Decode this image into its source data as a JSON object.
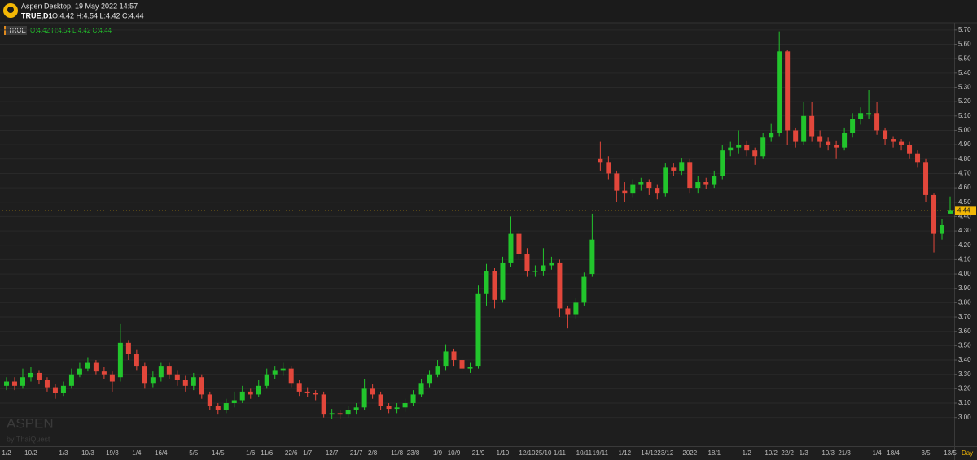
{
  "header": {
    "app": "Aspen Desktop, 19 May 2022 14:57",
    "symbol": "TRUE,D1",
    "ohlc": "O:4.42 H:4.54 L:4.42 C:4.44"
  },
  "watermark": {
    "brand": "ASPEN",
    "by": "by ThaiQuest"
  },
  "chart_data": {
    "type": "candlestick",
    "name": "TRUE",
    "timeframe": "Day",
    "up_color": "#22c52c",
    "down_color": "#e2473b",
    "grid": true,
    "ylim": [
      2.8,
      5.75
    ],
    "yticks": [
      {
        "value": 3,
        "label": "3.00"
      },
      {
        "value": 3.1,
        "label": "3.10"
      },
      {
        "value": 3.2,
        "label": "3.20"
      },
      {
        "value": 3.3,
        "label": "3.30"
      },
      {
        "value": 3.4,
        "label": "3.40"
      },
      {
        "value": 3.5,
        "label": "3.50"
      },
      {
        "value": 3.6,
        "label": "3.60"
      },
      {
        "value": 3.7,
        "label": "3.70"
      },
      {
        "value": 3.8,
        "label": "3.80"
      },
      {
        "value": 3.9,
        "label": "3.90"
      },
      {
        "value": 4,
        "label": "4.00"
      },
      {
        "value": 4.1,
        "label": "4.10"
      },
      {
        "value": 4.2,
        "label": "4.20"
      },
      {
        "value": 4.3,
        "label": "4.30"
      },
      {
        "value": 4.4,
        "label": "4.40"
      },
      {
        "value": 4.5,
        "label": "4.50"
      },
      {
        "value": 4.6,
        "label": "4.60"
      },
      {
        "value": 4.7,
        "label": "4.70"
      },
      {
        "value": 4.8,
        "label": "4.80"
      },
      {
        "value": 4.9,
        "label": "4.90"
      },
      {
        "value": 5,
        "label": "5.00"
      },
      {
        "value": 5.1,
        "label": "5.10"
      },
      {
        "value": 5.2,
        "label": "5.20"
      },
      {
        "value": 5.3,
        "label": "5.30"
      },
      {
        "value": 5.4,
        "label": "5.40"
      },
      {
        "value": 5.5,
        "label": "5.50"
      },
      {
        "value": 5.6,
        "label": "5.60"
      },
      {
        "value": 5.7,
        "label": "5.70"
      }
    ],
    "categories": [
      "1/2",
      null,
      null,
      "10/2",
      null,
      null,
      null,
      "1/3",
      null,
      null,
      "10/3",
      null,
      null,
      "19/3",
      null,
      null,
      "1/4",
      null,
      null,
      "16/4",
      null,
      null,
      null,
      "5/5",
      null,
      null,
      "14/5",
      null,
      null,
      null,
      "1/6",
      null,
      "11/6",
      null,
      null,
      "22/6",
      null,
      "1/7",
      null,
      null,
      "12/7",
      null,
      null,
      "21/7",
      null,
      "2/8",
      null,
      null,
      "11/8",
      null,
      "23/8",
      null,
      null,
      "1/9",
      null,
      "10/9",
      null,
      null,
      "21/9",
      null,
      null,
      "1/10",
      null,
      null,
      "12/10",
      null,
      "25/10",
      null,
      "1/11",
      null,
      null,
      "10/11",
      null,
      "19/11",
      null,
      null,
      "1/12",
      null,
      null,
      "14/12",
      null,
      "23/12",
      null,
      null,
      "2022",
      null,
      null,
      "18/1",
      null,
      null,
      null,
      "1/2",
      null,
      null,
      "10/2",
      null,
      "22/2",
      null,
      "1/3",
      null,
      null,
      "10/3",
      null,
      "21/3",
      null,
      null,
      null,
      "1/4",
      null,
      "18/4",
      null,
      null,
      null,
      "3/5",
      null,
      null,
      "13/5"
    ],
    "open": [
      3.22,
      3.25,
      3.22,
      3.28,
      3.31,
      3.26,
      3.21,
      3.17,
      3.22,
      3.3,
      3.34,
      3.38,
      3.32,
      3.3,
      3.28,
      3.52,
      3.44,
      3.36,
      3.24,
      3.28,
      3.36,
      3.3,
      3.26,
      3.22,
      3.28,
      3.16,
      3.08,
      3.05,
      3.1,
      3.12,
      3.18,
      3.16,
      3.22,
      3.3,
      3.33,
      3.34,
      3.24,
      3.18,
      3.17,
      3.16,
      3.02,
      3.03,
      3.02,
      3.05,
      3.07,
      3.2,
      3.16,
      3.08,
      3.06,
      3.07,
      3.1,
      3.16,
      3.24,
      3.3,
      3.36,
      3.46,
      3.4,
      3.34,
      3.36,
      3.86,
      4.02,
      3.82,
      4.08,
      4.28,
      4.14,
      4.02,
      4.02,
      4.06,
      4.08,
      3.76,
      3.72,
      3.8,
      4.0,
      4.8,
      4.78,
      4.7,
      4.58,
      4.56,
      4.62,
      4.64,
      4.6,
      4.56,
      4.74,
      4.72,
      4.78,
      4.6,
      4.64,
      4.62,
      4.68,
      4.86,
      4.88,
      4.9,
      4.86,
      4.82,
      4.95,
      4.98,
      5.55,
      5.0,
      4.92,
      5.1,
      4.96,
      4.92,
      4.9,
      4.88,
      4.98,
      5.08,
      5.12,
      5.12,
      5.0,
      4.94,
      4.92,
      4.9,
      4.84,
      4.78,
      4.55,
      4.28,
      4.42
    ],
    "high": [
      3.28,
      3.28,
      3.34,
      3.35,
      3.33,
      3.28,
      3.23,
      3.25,
      3.34,
      3.38,
      3.42,
      3.4,
      3.35,
      3.32,
      3.65,
      3.54,
      3.47,
      3.38,
      3.32,
      3.38,
      3.38,
      3.33,
      3.29,
      3.31,
      3.3,
      3.18,
      3.1,
      3.13,
      3.18,
      3.22,
      3.2,
      3.26,
      3.34,
      3.36,
      3.38,
      3.36,
      3.26,
      3.21,
      3.19,
      3.18,
      3.06,
      3.05,
      3.08,
      3.1,
      3.27,
      3.23,
      3.18,
      3.1,
      3.1,
      3.13,
      3.19,
      3.27,
      3.33,
      3.4,
      3.51,
      3.48,
      3.42,
      3.38,
      3.92,
      4.07,
      4.04,
      4.12,
      4.4,
      4.3,
      4.18,
      4.06,
      4.18,
      4.12,
      4.1,
      3.78,
      3.83,
      4.01,
      4.42,
      4.92,
      4.82,
      4.72,
      4.64,
      4.66,
      4.67,
      4.66,
      4.62,
      4.77,
      4.77,
      4.81,
      4.8,
      4.68,
      4.67,
      4.72,
      4.9,
      4.92,
      5.0,
      4.93,
      4.88,
      4.98,
      5.05,
      5.69,
      5.56,
      5.02,
      5.2,
      5.2,
      5.0,
      4.95,
      4.93,
      5.02,
      5.12,
      5.16,
      5.28,
      5.2,
      5.02,
      4.96,
      4.94,
      4.92,
      4.86,
      4.8,
      4.56,
      4.38,
      4.54
    ],
    "low": [
      3.19,
      3.19,
      3.2,
      3.25,
      3.23,
      3.18,
      3.13,
      3.15,
      3.2,
      3.28,
      3.32,
      3.3,
      3.27,
      3.18,
      3.25,
      3.4,
      3.33,
      3.2,
      3.21,
      3.25,
      3.27,
      3.22,
      3.18,
      3.19,
      3.13,
      3.05,
      3.02,
      3.03,
      3.07,
      3.1,
      3.13,
      3.14,
      3.2,
      3.27,
      3.29,
      3.21,
      3.15,
      3.14,
      3.12,
      3.0,
      2.99,
      2.99,
      3.0,
      3.02,
      3.05,
      3.13,
      3.05,
      3.03,
      3.03,
      3.04,
      3.08,
      3.14,
      3.21,
      3.28,
      3.33,
      3.36,
      3.31,
      3.31,
      3.34,
      3.78,
      3.76,
      3.8,
      4.05,
      4.1,
      3.98,
      3.98,
      3.99,
      4.03,
      3.7,
      3.62,
      3.69,
      3.78,
      3.98,
      4.72,
      4.66,
      4.5,
      4.5,
      4.53,
      4.58,
      4.55,
      4.52,
      4.54,
      4.68,
      4.69,
      4.56,
      4.56,
      4.59,
      4.6,
      4.66,
      4.82,
      4.84,
      4.82,
      4.76,
      4.8,
      4.92,
      4.96,
      4.9,
      4.88,
      4.9,
      4.92,
      4.88,
      4.86,
      4.8,
      4.86,
      4.95,
      5.04,
      5.08,
      4.97,
      4.9,
      4.88,
      4.86,
      4.8,
      4.74,
      4.5,
      4.15,
      4.24,
      4.42
    ],
    "close": [
      3.25,
      3.22,
      3.28,
      3.31,
      3.26,
      3.21,
      3.17,
      3.22,
      3.3,
      3.34,
      3.38,
      3.32,
      3.3,
      3.25,
      3.52,
      3.44,
      3.36,
      3.24,
      3.28,
      3.36,
      3.3,
      3.26,
      3.22,
      3.28,
      3.16,
      3.08,
      3.05,
      3.1,
      3.12,
      3.18,
      3.16,
      3.22,
      3.3,
      3.33,
      3.34,
      3.24,
      3.18,
      3.17,
      3.16,
      3.02,
      3.03,
      3.02,
      3.05,
      3.07,
      3.2,
      3.16,
      3.08,
      3.06,
      3.07,
      3.1,
      3.16,
      3.24,
      3.3,
      3.36,
      3.46,
      3.4,
      3.34,
      3.35,
      3.86,
      4.02,
      3.82,
      4.08,
      4.28,
      4.14,
      4.02,
      4.02,
      4.06,
      4.08,
      3.76,
      3.72,
      3.8,
      3.98,
      4.24,
      4.78,
      4.7,
      4.58,
      4.56,
      4.62,
      4.64,
      4.6,
      4.56,
      4.74,
      4.72,
      4.78,
      4.6,
      4.64,
      4.62,
      4.68,
      4.86,
      4.88,
      4.9,
      4.86,
      4.82,
      4.95,
      4.98,
      5.55,
      5.0,
      4.92,
      5.1,
      4.96,
      4.92,
      4.9,
      4.88,
      4.98,
      5.08,
      5.12,
      5.12,
      5.0,
      4.94,
      4.92,
      4.9,
      4.84,
      4.78,
      4.55,
      4.28,
      4.34,
      4.44
    ]
  }
}
